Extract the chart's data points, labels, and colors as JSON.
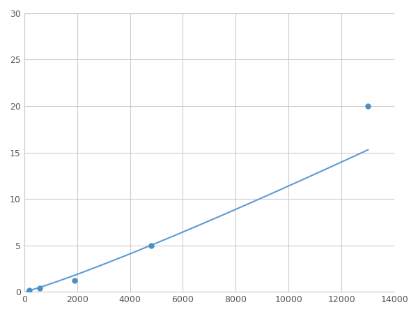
{
  "x_data": [
    200,
    600,
    1900,
    4800,
    13000
  ],
  "y_data": [
    0.2,
    0.4,
    1.2,
    5.0,
    20.0
  ],
  "line_color": "#5b9bd5",
  "marker_color": "#4a90c4",
  "marker_size": 6,
  "line_width": 1.5,
  "xlim": [
    0,
    14000
  ],
  "ylim": [
    0,
    30
  ],
  "xticks": [
    0,
    2000,
    4000,
    6000,
    8000,
    10000,
    12000,
    14000
  ],
  "yticks": [
    0,
    5,
    10,
    15,
    20,
    25,
    30
  ],
  "grid_color": "#cccccc",
  "background_color": "#ffffff",
  "fig_width": 6.0,
  "fig_height": 4.5,
  "dpi": 100
}
